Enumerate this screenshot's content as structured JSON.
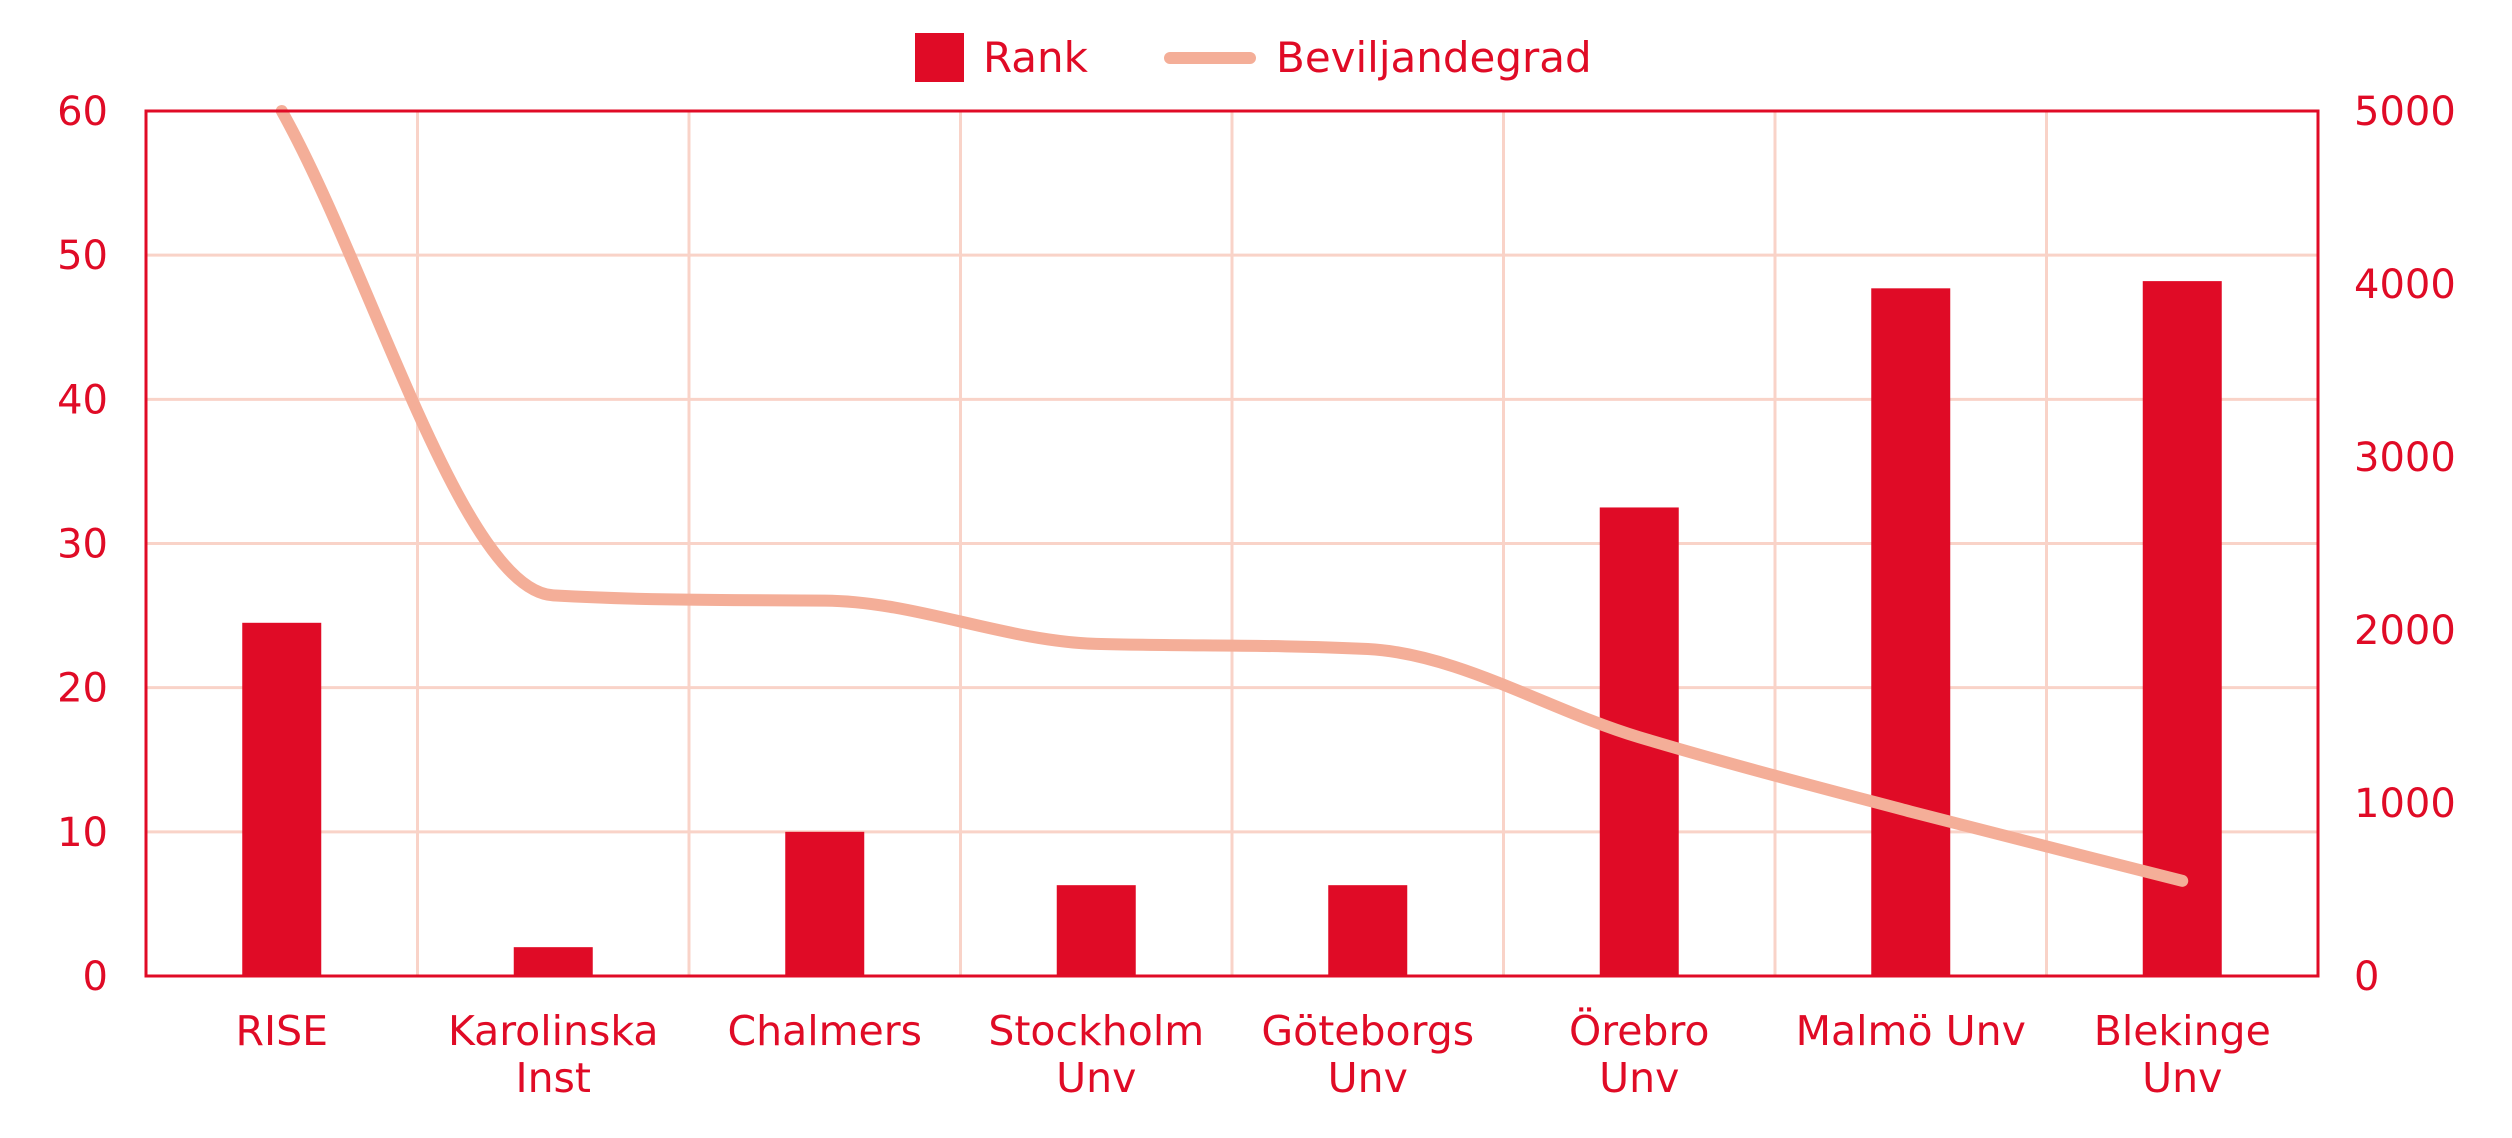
{
  "chart_data": {
    "type": "bar",
    "categories": [
      [
        "RISE"
      ],
      [
        "Karolinska",
        "Inst"
      ],
      [
        "Chalmers"
      ],
      [
        "Stockholm",
        "Unv"
      ],
      [
        "Göteborgs",
        "Unv"
      ],
      [
        "Örebro",
        "Unv"
      ],
      [
        "Malmö Unv"
      ],
      [
        "Blekinge",
        "Unv"
      ]
    ],
    "series": [
      {
        "name": "Rank",
        "type": "bar",
        "axis": "left",
        "color": "#e00b26",
        "values": [
          24.5,
          2,
          10,
          6.3,
          6.3,
          32.5,
          47.7,
          48.2
        ]
      },
      {
        "name": "Beviljandegrad",
        "type": "line",
        "axis": "right",
        "color": "#f4ae98",
        "smooth": true,
        "values": [
          5000,
          2200,
          2170,
          1920,
          1890,
          1380,
          950,
          550
        ]
      }
    ],
    "y_left": {
      "ylim": [
        0,
        60
      ],
      "ticks": [
        "0",
        "10",
        "20",
        "30",
        "40",
        "50",
        "60"
      ]
    },
    "y_right": {
      "ylim": [
        0,
        5000
      ],
      "ticks": [
        "0",
        "1000",
        "2000",
        "3000",
        "4000",
        "5000"
      ]
    },
    "grid": true,
    "legend": "top-center"
  }
}
